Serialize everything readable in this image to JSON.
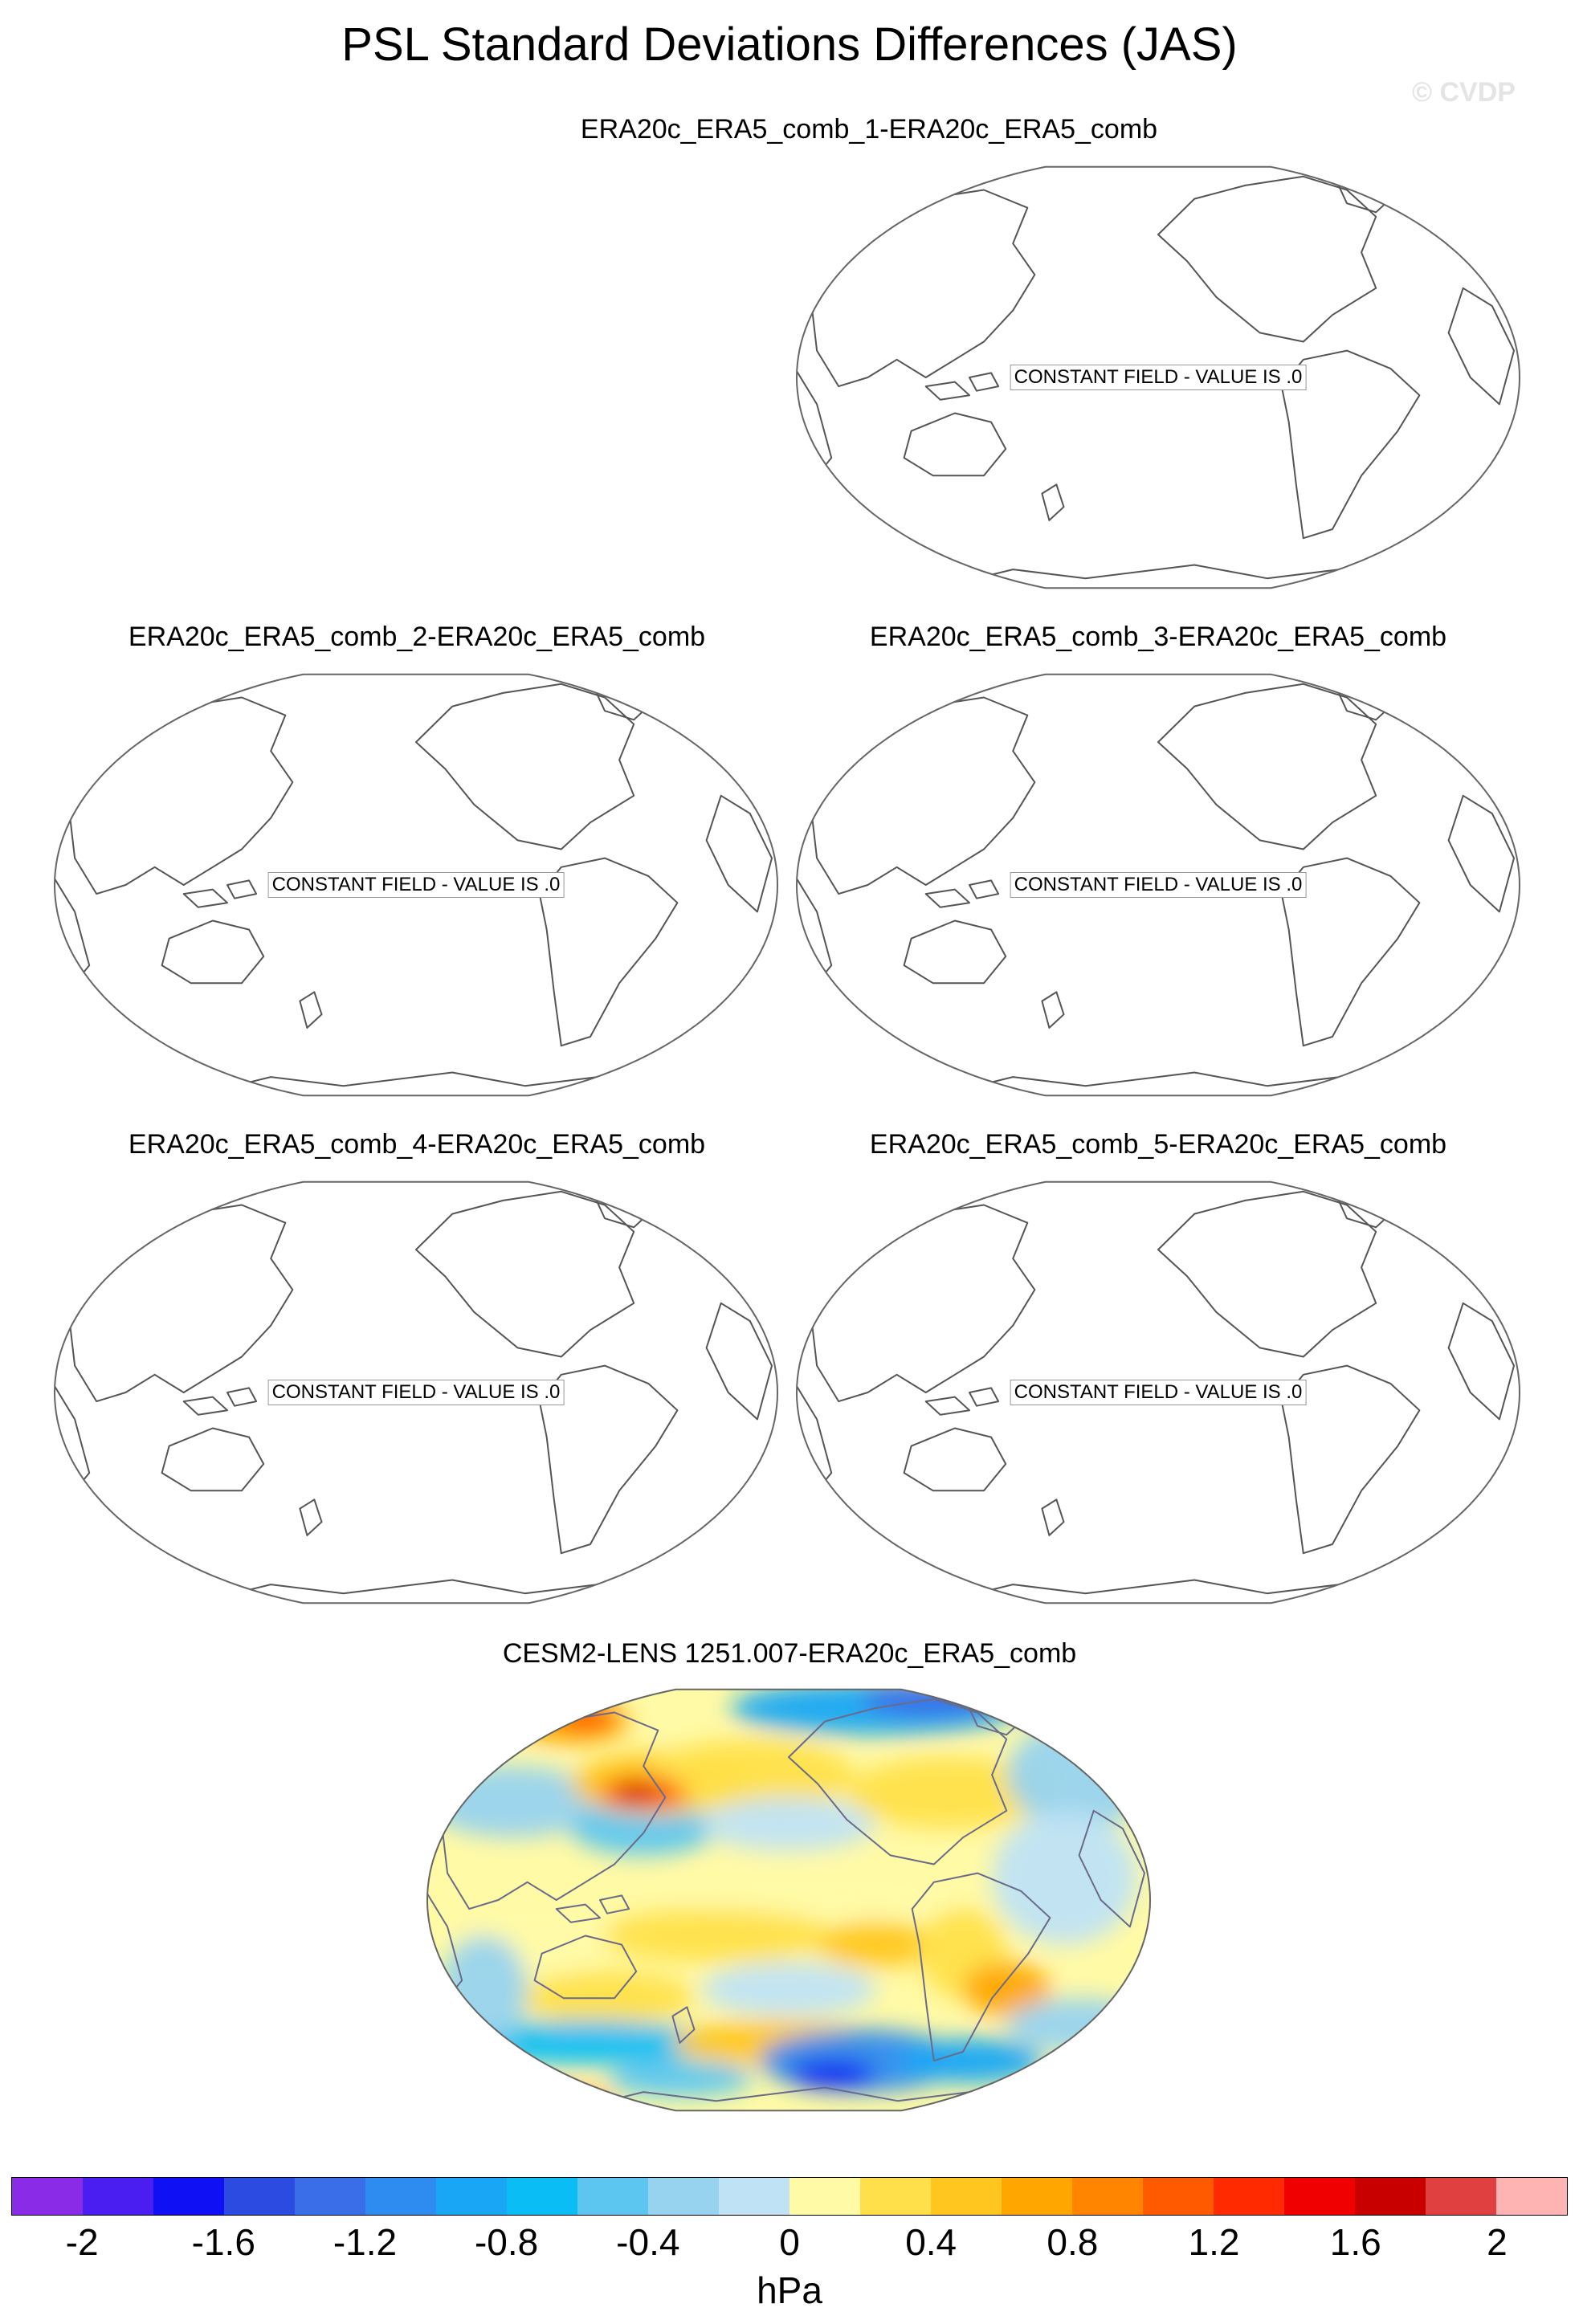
{
  "title": "PSL Standard Deviations Differences (JAS)",
  "watermark": "© CVDP",
  "panels": [
    {
      "title": "ERA20c_ERA5_comb_1-ERA20c_ERA5_comb",
      "label": "CONSTANT FIELD - VALUE IS .0"
    },
    {
      "title": "ERA20c_ERA5_comb_2-ERA20c_ERA5_comb",
      "label": "CONSTANT FIELD - VALUE IS .0"
    },
    {
      "title": "ERA20c_ERA5_comb_3-ERA20c_ERA5_comb",
      "label": "CONSTANT FIELD - VALUE IS .0"
    },
    {
      "title": "ERA20c_ERA5_comb_4-ERA20c_ERA5_comb",
      "label": "CONSTANT FIELD - VALUE IS .0"
    },
    {
      "title": "ERA20c_ERA5_comb_5-ERA20c_ERA5_comb",
      "label": "CONSTANT FIELD - VALUE IS .0"
    }
  ],
  "anomaly_panel": {
    "title": "CESM2-LENS 1251.007-ERA20c_ERA5_comb"
  },
  "colorbar": {
    "units": "hPa",
    "colors": [
      "#8a2be8",
      "#4a1df0",
      "#1010f5",
      "#2c4be0",
      "#3a6ee8",
      "#2e8bf0",
      "#19a6f5",
      "#0abef5",
      "#5cc6f0",
      "#97d3ef",
      "#bfe3f5",
      "#fffaa6",
      "#ffe04a",
      "#ffc61f",
      "#ffa600",
      "#ff8500",
      "#ff5a00",
      "#ff2a00",
      "#f00000",
      "#c80000",
      "#e04040",
      "#ffb4b4"
    ],
    "ticks": [
      "-2",
      "-1.6",
      "-1.2",
      "-0.8",
      "-0.4",
      "0",
      "0.4",
      "0.8",
      "1.2",
      "1.6",
      "2"
    ]
  }
}
